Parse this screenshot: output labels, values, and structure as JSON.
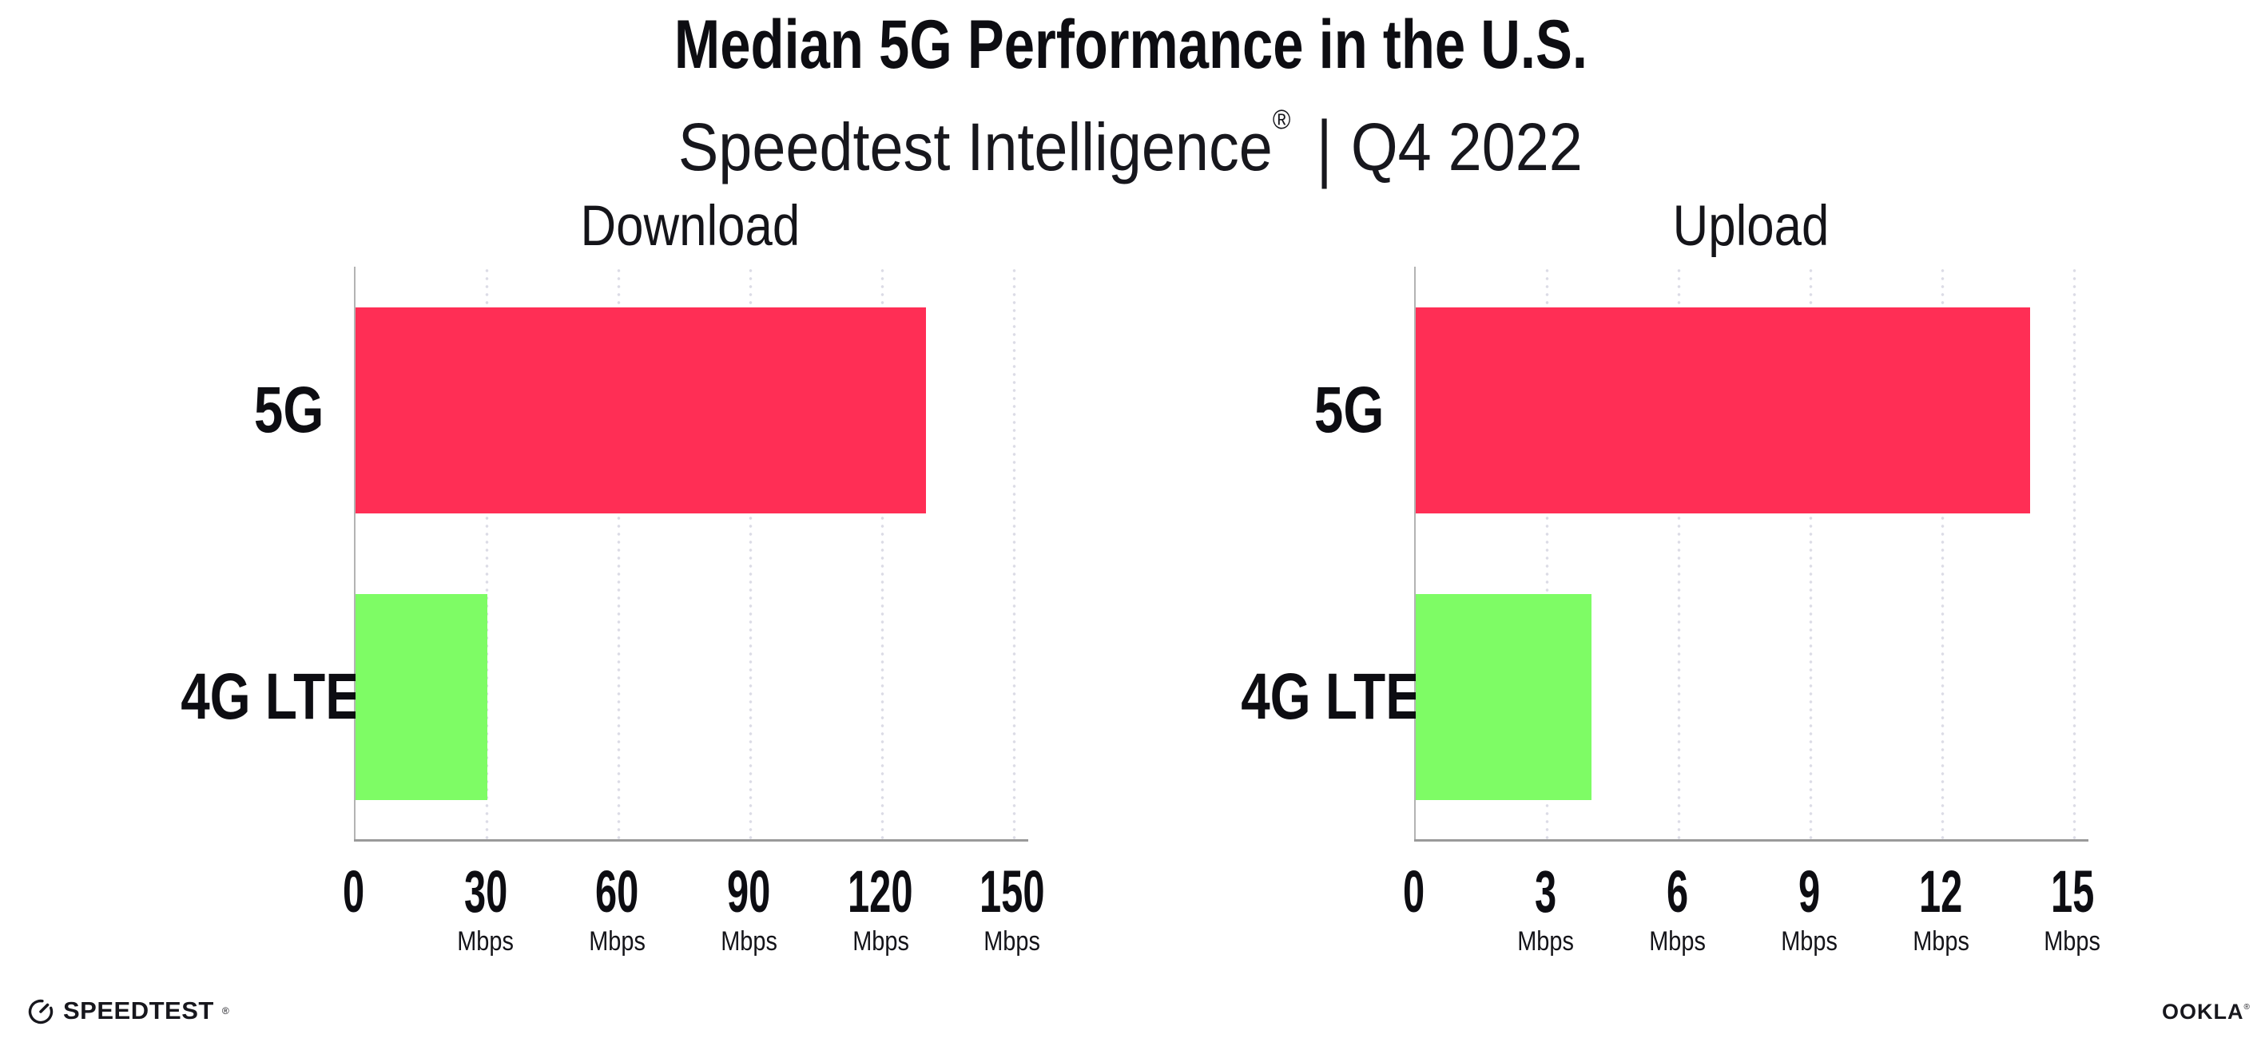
{
  "header": {
    "title": "Median 5G Performance in the U.S.",
    "subtitle": {
      "brand": "Speedtest Intelligence",
      "reg_mark": "®",
      "separator": "|",
      "period": "Q4 2022"
    }
  },
  "chart_data": [
    {
      "type": "bar",
      "orientation": "horizontal",
      "title": "Download",
      "categories": [
        "5G",
        "4G LTE"
      ],
      "values": [
        130,
        30
      ],
      "unit": "Mbps",
      "xlim": [
        0,
        150
      ],
      "xticks": [
        0,
        30,
        60,
        90,
        120,
        150
      ],
      "xtick_unit_label": "Mbps",
      "colors": [
        "#ff2e55",
        "#7efc65"
      ],
      "grid": "dotted-vertical",
      "legend": "none"
    },
    {
      "type": "bar",
      "orientation": "horizontal",
      "title": "Upload",
      "categories": [
        "5G",
        "4G LTE"
      ],
      "values": [
        14,
        4
      ],
      "unit": "Mbps",
      "xlim": [
        0,
        15
      ],
      "xticks": [
        0,
        3,
        6,
        9,
        12,
        15
      ],
      "xtick_unit_label": "Mbps",
      "colors": [
        "#ff2e55",
        "#7efc65"
      ],
      "grid": "dotted-vertical",
      "legend": "none"
    }
  ],
  "colors": {
    "bar_5g": "#ff2e55",
    "bar_4g_lte": "#7efc65",
    "gridline_dot": "#dcdce6",
    "x_axis_line": "#9a9a9a",
    "y_axis_line": "#b3b3b3",
    "text": "#0d0d12"
  },
  "footer": {
    "speedtest": "SPEEDTEST",
    "speedtest_reg": "®",
    "ookla": "OOKLA",
    "ookla_reg": "®"
  }
}
